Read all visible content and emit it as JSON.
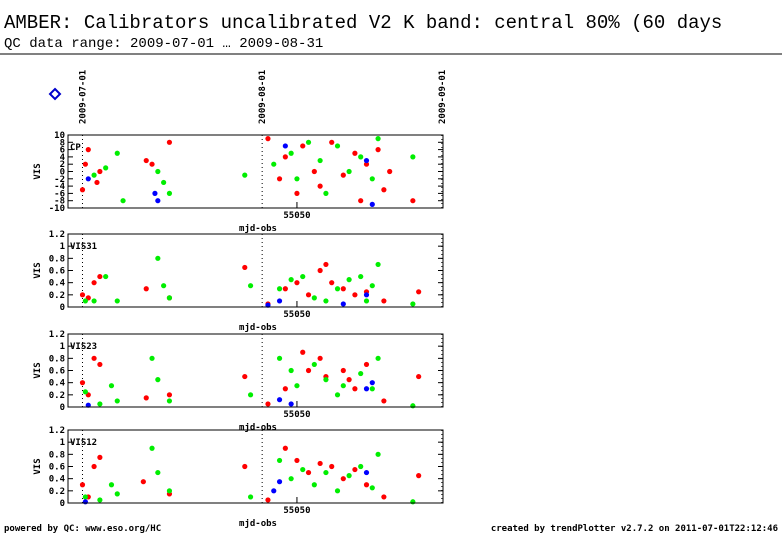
{
  "header": {
    "title": "AMBER: Calibrators uncalibrated V2 K band: central 80% (60 days",
    "subtitle": "QC data range: 2009-07-01 … 2009-08-31"
  },
  "date_markers": [
    {
      "value": 55013,
      "label": "2009-07-01"
    },
    {
      "value": 55044,
      "label": "2009-08-01"
    },
    {
      "value": 55075,
      "label": "2009-09-01"
    }
  ],
  "footer": {
    "left": "powered by QC: www.eso.org/HC",
    "right": "created by trendPlotter v2.7.2 on 2011-07-01T22:12:46"
  },
  "chart_data": [
    {
      "type": "scatter",
      "label": "CP",
      "ylabel": "VIS",
      "xlabel": "mjd-obs",
      "xlim": [
        55010.5,
        55075.2
      ],
      "xticks": [
        55050
      ],
      "ylim": [
        -10,
        10
      ],
      "yticks": [
        -10,
        -8,
        -6,
        -4,
        -2,
        0,
        2,
        4,
        6,
        8,
        10
      ],
      "series": [
        {
          "color": "#ff0000",
          "x": [
            55013,
            55013.5,
            55014,
            55015.5,
            55016,
            55024,
            55025,
            55028,
            55045,
            55047,
            55048,
            55050,
            55051,
            55053,
            55054,
            55056,
            55058,
            55060,
            55061,
            55062,
            55064,
            55065,
            55066,
            55070
          ],
          "values": [
            -5,
            2,
            6,
            -3,
            0,
            3,
            2,
            8,
            9,
            -2,
            4,
            -6,
            7,
            0,
            -4,
            8,
            -1,
            5,
            -8,
            2,
            6,
            -5,
            0,
            -8
          ]
        },
        {
          "color": "#00ee00",
          "x": [
            55015,
            55017,
            55019,
            55020,
            55026,
            55027,
            55028,
            55041,
            55046,
            55049,
            55050,
            55052,
            55054,
            55055,
            55057,
            55059,
            55061,
            55063,
            55064,
            55070
          ],
          "values": [
            -1,
            1,
            5,
            -8,
            0,
            -3,
            -6,
            -1,
            2,
            5,
            -2,
            8,
            3,
            -6,
            7,
            0,
            4,
            -2,
            9,
            4
          ]
        },
        {
          "color": "#0000ff",
          "x": [
            55014,
            55025.5,
            55026,
            55048,
            55062,
            55063
          ],
          "values": [
            -2,
            -6,
            -8,
            7,
            3,
            -9
          ]
        }
      ]
    },
    {
      "type": "scatter",
      "label": "VIS31",
      "ylabel": "VIS",
      "xlabel": "mjd-obs",
      "xlim": [
        55010.5,
        55075.2
      ],
      "xticks": [
        55050
      ],
      "ylim": [
        0,
        1.2
      ],
      "yticks": [
        0,
        0.2,
        0.4,
        0.6,
        0.8,
        1,
        1.2
      ],
      "series": [
        {
          "color": "#ff0000",
          "x": [
            55013,
            55014,
            55015,
            55016,
            55024,
            55028,
            55041,
            55045,
            55048,
            55050,
            55052,
            55054,
            55055,
            55056,
            55058,
            55060,
            55062,
            55065,
            55071
          ],
          "values": [
            0.2,
            0.15,
            0.4,
            0.5,
            0.3,
            0.15,
            0.65,
            0.05,
            0.3,
            0.4,
            0.2,
            0.6,
            0.7,
            0.4,
            0.3,
            0.2,
            0.25,
            0.1,
            0.25
          ]
        },
        {
          "color": "#00ee00",
          "x": [
            55013.5,
            55015,
            55017,
            55019,
            55026,
            55027,
            55028,
            55042,
            55047,
            55049,
            55051,
            55053,
            55055,
            55057,
            55059,
            55061,
            55062,
            55063,
            55064,
            55070
          ],
          "values": [
            0.1,
            0.1,
            0.5,
            0.1,
            0.8,
            0.35,
            0.15,
            0.35,
            0.3,
            0.45,
            0.5,
            0.15,
            0.1,
            0.3,
            0.45,
            0.5,
            0.1,
            0.35,
            0.7,
            0.05
          ]
        },
        {
          "color": "#0000ff",
          "x": [
            55045,
            55047,
            55058,
            55062
          ],
          "values": [
            0.03,
            0.1,
            0.05,
            0.2
          ]
        }
      ]
    },
    {
      "type": "scatter",
      "label": "VIS23",
      "ylabel": "VIS",
      "xlabel": "mjd-obs",
      "xlim": [
        55010.5,
        55075.2
      ],
      "xticks": [
        55050
      ],
      "ylim": [
        0,
        1.2
      ],
      "yticks": [
        0,
        0.2,
        0.4,
        0.6,
        0.8,
        1,
        1.2
      ],
      "series": [
        {
          "color": "#ff0000",
          "x": [
            55013,
            55014,
            55015,
            55016,
            55024,
            55028,
            55041,
            55045,
            55048,
            55051,
            55052,
            55054,
            55055,
            55058,
            55059,
            55060,
            55062,
            55065,
            55071
          ],
          "values": [
            0.4,
            0.2,
            0.8,
            0.7,
            0.15,
            0.2,
            0.5,
            0.05,
            0.3,
            0.9,
            0.6,
            0.8,
            0.5,
            0.6,
            0.45,
            0.3,
            0.7,
            0.1,
            0.5
          ]
        },
        {
          "color": "#00ee00",
          "x": [
            55013.5,
            55016,
            55018,
            55019,
            55025,
            55026,
            55028,
            55042,
            55047,
            55049,
            55050,
            55053,
            55055,
            55057,
            55058,
            55061,
            55063,
            55064,
            55070
          ],
          "values": [
            0.25,
            0.05,
            0.35,
            0.1,
            0.8,
            0.45,
            0.1,
            0.2,
            0.8,
            0.6,
            0.35,
            0.7,
            0.45,
            0.2,
            0.35,
            0.55,
            0.3,
            0.8,
            0.02
          ]
        },
        {
          "color": "#0000ff",
          "x": [
            55014,
            55047,
            55049,
            55062,
            55063
          ],
          "values": [
            0.03,
            0.12,
            0.05,
            0.3,
            0.4
          ]
        }
      ]
    },
    {
      "type": "scatter",
      "label": "VIS12",
      "ylabel": "VIS",
      "xlabel": "mjd-obs",
      "xlim": [
        55010.5,
        55075.2
      ],
      "xticks": [
        55050
      ],
      "ylim": [
        0,
        1.2
      ],
      "yticks": [
        0,
        0.2,
        0.4,
        0.6,
        0.8,
        1,
        1.2
      ],
      "series": [
        {
          "color": "#ff0000",
          "x": [
            55013,
            55014,
            55015,
            55016,
            55023.5,
            55028,
            55041,
            55045,
            55048,
            55050,
            55052,
            55054,
            55056,
            55058,
            55060,
            55062,
            55065,
            55071
          ],
          "values": [
            0.3,
            0.1,
            0.6,
            0.75,
            0.35,
            0.15,
            0.6,
            0.05,
            0.9,
            0.7,
            0.5,
            0.65,
            0.6,
            0.4,
            0.55,
            0.3,
            0.1,
            0.45
          ]
        },
        {
          "color": "#00ee00",
          "x": [
            55013.5,
            55016,
            55018,
            55019,
            55025,
            55026,
            55028,
            55042,
            55047,
            55049,
            55051,
            55053,
            55055,
            55057,
            55059,
            55061,
            55063,
            55064,
            55070
          ],
          "values": [
            0.1,
            0.05,
            0.3,
            0.15,
            0.9,
            0.5,
            0.2,
            0.1,
            0.7,
            0.4,
            0.55,
            0.3,
            0.5,
            0.2,
            0.45,
            0.6,
            0.25,
            0.8,
            0.02
          ]
        },
        {
          "color": "#0000ff",
          "x": [
            55013.5,
            55046,
            55047,
            55062
          ],
          "values": [
            0.02,
            0.2,
            0.35,
            0.5
          ]
        }
      ]
    }
  ]
}
